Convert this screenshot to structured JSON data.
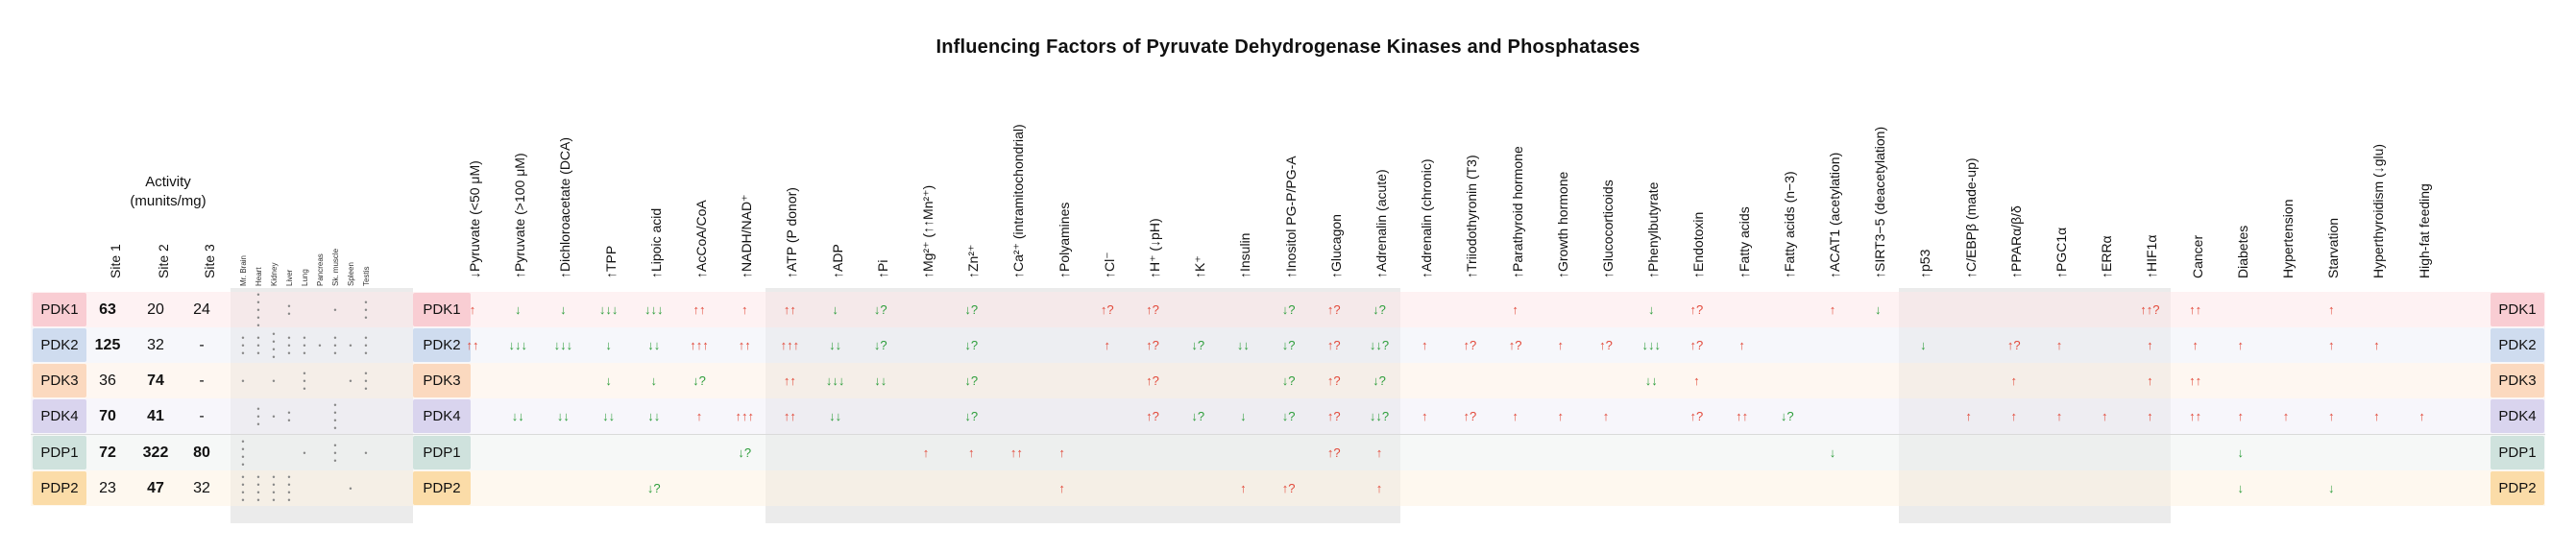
{
  "title": "Influencing Factors of Pyruvate Dehydrogenase Kinases and Phosphatases",
  "activity_title": "Activity\n(munits/mg)",
  "site_headers": [
    "Site 1",
    "Site 2",
    "Site 3"
  ],
  "tissue_headers": [
    "Mr. Brain",
    "Heart",
    "Kidney",
    "Liver",
    "Lung",
    "Pancreas",
    "Sk. muscle",
    "Spleen",
    "Testis"
  ],
  "factor_headers": [
    "↓Pyruvate (<50 μM)",
    "↑Pyruvate (>100 μM)",
    "↑Dichloroacetate (DCA)",
    "↑TPP",
    "↑Lipoic acid",
    "↑AcCoA/CoA",
    "↑NADH/NAD⁺",
    "↑ATP (P donor)",
    "↑ADP",
    "↑Pi",
    "↑Mg²⁺ (↑↑Mn²⁺)",
    "↑Zn²⁺",
    "↑Ca²⁺ (intramitochondrial)",
    "↑Polyamines",
    "↑Cl⁻",
    "↑H⁺ (↓pH)",
    "↑K⁺",
    "↑Insulin",
    "↑Inositol PG-P/PG-A",
    "↑Glucagon",
    "↑Adrenalin (acute)",
    "↑Adrenalin (chronic)",
    "↑Triiodothyronin (T3)",
    "↑Parathyroid hormone",
    "↑Growth hormone",
    "↑Glucocorticoids",
    "↑Phenylbutyrate",
    "↑Endotoxin",
    "↑Fatty acids",
    "↑Fatty acids (n−3)",
    "↑ACAT1 (acetylation)",
    "↑SIRT3−5 (deacetylation)",
    "↑p53",
    "↑C/EBPβ (made-up)",
    "↑PPARα/β/δ",
    "↑PGC1α",
    "↑ERRα",
    "↑HIF1α",
    "Cancer",
    "Diabetes",
    "Hypertension",
    "Starvation",
    "Hyperthyroidism (↓glu)",
    "High-fat feeding"
  ],
  "rows": [
    {
      "name": "PDK1",
      "bg": "#fde8ea",
      "labelbg": "#f9cdd3",
      "sites": [
        "63",
        "20",
        "24"
      ],
      "bold": [
        true,
        false,
        false
      ],
      "tissues": [
        "",
        "5",
        "",
        "2",
        "",
        "",
        "1",
        "",
        "3"
      ],
      "cells": {
        "0": "↑",
        "1": "↓",
        "2": "↓",
        "3": "↓↓↓",
        "4": "↓↓↓",
        "5": "↑↑",
        "6": "↑",
        "7": "↑↑",
        "8": "↓",
        "9": "↓?",
        "11": "↓?",
        "14": "↑?",
        "15": "↑?",
        "18": "↓?",
        "19": "↑?",
        "20": "↓?",
        "23": "↑",
        "26": "↓",
        "27": "↑?",
        "30": "↑",
        "31": "↓",
        "37": "↑↑?",
        "38": "↑↑",
        "41": "↑"
      }
    },
    {
      "name": "PDK2",
      "bg": "#eef1f8",
      "labelbg": "#cfdcef",
      "sites": [
        "125",
        "32",
        "-"
      ],
      "bold": [
        true,
        false,
        false
      ],
      "tissues": [
        "3",
        "3",
        "4",
        "3",
        "3",
        "1",
        "3",
        "1",
        "3"
      ],
      "cells": {
        "0": "↑↑",
        "1": "↓↓↓",
        "2": "↓↓↓",
        "3": "↓",
        "4": "↓↓",
        "5": "↑↑↑",
        "6": "↑↑",
        "7": "↑↑↑",
        "8": "↓↓",
        "9": "↓?",
        "11": "↓?",
        "14": "↑",
        "15": "↑?",
        "16": "↓?",
        "17": "↓↓",
        "18": "↓?",
        "19": "↑?",
        "20": "↓↓?",
        "21": "↑",
        "22": "↑?",
        "23": "↑?",
        "24": "↑",
        "25": "↑?",
        "26": "↓↓↓",
        "27": "↑?",
        "28": "↑",
        "32": "↓",
        "34": "↑?",
        "35": "↑",
        "37": "↑",
        "38": "↑",
        "39": "↑",
        "41": "↑",
        "42": "↑"
      }
    },
    {
      "name": "PDK3",
      "bg": "#fdf0e6",
      "labelbg": "#fbd9bf",
      "sites": [
        "36",
        "74",
        "-"
      ],
      "bold": [
        false,
        true,
        false
      ],
      "tissues": [
        "1",
        "",
        "1",
        "",
        "3",
        "",
        "",
        "1",
        "3"
      ],
      "cells": {
        "3": "↓",
        "4": "↓",
        "5": "↓?",
        "7": "↑↑",
        "8": "↓↓↓",
        "9": "↓↓",
        "11": "↓?",
        "15": "↑?",
        "18": "↓?",
        "19": "↑?",
        "20": "↓?",
        "26": "↓↓",
        "27": "↑",
        "34": "↑",
        "37": "↑",
        "38": "↑↑"
      }
    },
    {
      "name": "PDK4",
      "bg": "#f1eff8",
      "labelbg": "#d9d4ee",
      "sites": [
        "70",
        "41",
        "-"
      ],
      "bold": [
        true,
        true,
        false
      ],
      "tissues": [
        "",
        "3",
        "1",
        "2",
        "",
        "",
        "4",
        "",
        ""
      ],
      "cells": {
        "1": "↓↓",
        "2": "↓↓",
        "3": "↓↓",
        "4": "↓↓",
        "5": "↑",
        "6": "↑↑↑",
        "7": "↑↑",
        "8": "↓↓",
        "11": "↓?",
        "15": "↑?",
        "16": "↓?",
        "17": "↓",
        "18": "↓?",
        "19": "↑?",
        "20": "↓↓?",
        "21": "↑",
        "22": "↑?",
        "23": "↑",
        "24": "↑",
        "25": "↑",
        "27": "↑?",
        "28": "↑↑",
        "29": "↓?",
        "33": "↑",
        "34": "↑",
        "35": "↑",
        "36": "↑",
        "37": "↑",
        "38": "↑↑",
        "39": "↑",
        "40": "↑",
        "41": "↑",
        "42": "↑",
        "43": "↑"
      }
    },
    {
      "name": "PDP1",
      "bg": "#eef3f1",
      "labelbg": "#cfe2dd",
      "sites": [
        "72",
        "322",
        "80"
      ],
      "bold": [
        true,
        true,
        true
      ],
      "tissues": [
        "4",
        "",
        "",
        "",
        "1",
        "",
        "3",
        "",
        "1"
      ],
      "cells": {
        "6": "↓?",
        "10": "↑",
        "11": "↑",
        "12": "↑↑",
        "13": "↑",
        "19": "↑?",
        "20": "↑",
        "30": "↓",
        "39": "↓"
      }
    },
    {
      "name": "PDP2",
      "bg": "#fdf2e2",
      "labelbg": "#fbdca8",
      "sites": [
        "23",
        "47",
        "32"
      ],
      "bold": [
        false,
        true,
        false
      ],
      "tissues": [
        "4",
        "4",
        "4",
        "4",
        "",
        "",
        "",
        "1",
        ""
      ],
      "cells": {
        "4": "↓?",
        "13": "↑",
        "17": "↑",
        "18": "↑?",
        "20": "↑",
        "39": "↓",
        "41": "↓"
      }
    }
  ],
  "colors": {
    "up": "#e24a3b",
    "down": "#2e9e3c",
    "band": "#ebebeb"
  }
}
